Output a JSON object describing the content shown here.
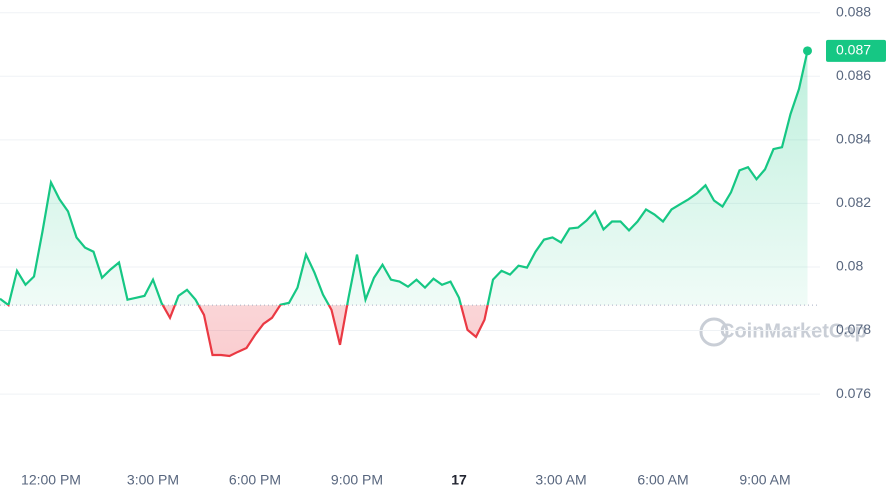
{
  "chart_data": {
    "type": "line",
    "categories": [
      null,
      null,
      null,
      null,
      null,
      null,
      "12:00 PM",
      null,
      null,
      null,
      null,
      null,
      null,
      null,
      null,
      null,
      null,
      null,
      "3:00 PM",
      null,
      null,
      null,
      null,
      null,
      null,
      null,
      null,
      null,
      null,
      null,
      "6:00 PM",
      null,
      null,
      null,
      null,
      null,
      null,
      null,
      null,
      null,
      null,
      null,
      "9:00 PM",
      null,
      null,
      null,
      null,
      null,
      null,
      null,
      null,
      null,
      null,
      null,
      "17",
      null,
      null,
      null,
      null,
      null,
      null,
      null,
      null,
      null,
      null,
      null,
      "3:00 AM",
      null,
      null,
      null,
      null,
      null,
      null,
      null,
      null,
      null,
      null,
      null,
      "6:00 AM",
      null,
      null,
      null,
      null,
      null,
      null,
      null,
      null,
      null,
      null,
      null,
      "9:00 AM",
      null,
      null,
      null,
      null,
      null
    ],
    "values": [
      0.079,
      0.0788,
      0.07988,
      0.07944,
      0.0797,
      0.08112,
      0.08266,
      0.08213,
      0.08175,
      0.08093,
      0.08061,
      0.08048,
      0.07966,
      0.07992,
      0.08014,
      0.07897,
      0.07903,
      0.07909,
      0.0796,
      0.07887,
      0.0784,
      0.07909,
      0.07928,
      0.07897,
      0.07849,
      0.07723,
      0.07723,
      0.0772,
      0.07733,
      0.07745,
      0.07786,
      0.07821,
      0.0784,
      0.07881,
      0.07887,
      0.07935,
      0.08039,
      0.07982,
      0.07913,
      0.07865,
      0.07755,
      0.07903,
      0.08039,
      0.07897,
      0.07966,
      0.08007,
      0.0796,
      0.07954,
      0.07938,
      0.0796,
      0.07935,
      0.07963,
      0.07944,
      0.07954,
      0.07903,
      0.07802,
      0.0778,
      0.07834,
      0.0796,
      0.07988,
      0.07976,
      0.08004,
      0.07998,
      0.08048,
      0.08086,
      0.08093,
      0.08077,
      0.08121,
      0.08124,
      0.08146,
      0.08175,
      0.08118,
      0.08143,
      0.08143,
      0.08115,
      0.08143,
      0.08181,
      0.08165,
      0.08143,
      0.08181,
      0.08197,
      0.08213,
      0.08232,
      0.08257,
      0.08209,
      0.0819,
      0.08235,
      0.08304,
      0.08314,
      0.08276,
      0.08307,
      0.08371,
      0.08377,
      0.08481,
      0.0856,
      0.0868
    ],
    "baseline": 0.0788,
    "up_color": "#16c784",
    "down_color": "#ea3943",
    "ylim": [
      0.0738,
      0.0884
    ],
    "yticks": [
      0.076,
      0.078,
      0.08,
      0.082,
      0.084,
      0.086,
      0.088
    ],
    "grid": true,
    "current_price": {
      "value": 0.0868,
      "label": "0.087"
    },
    "watermark": "CoinMarketCap"
  }
}
